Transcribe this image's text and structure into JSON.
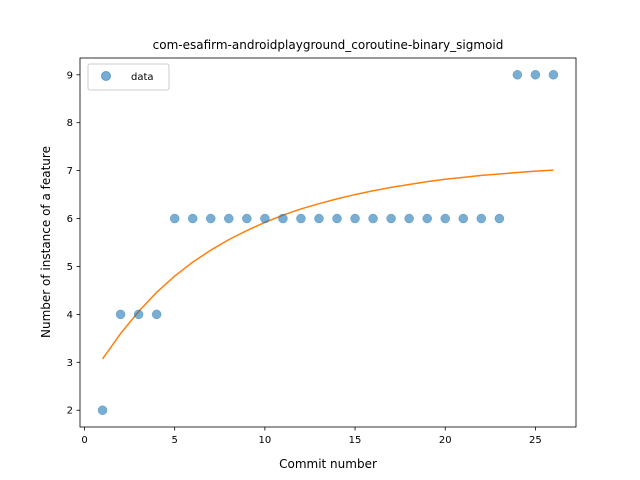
{
  "chart_data": {
    "type": "scatter",
    "title": "com-esafirm-androidplayground_coroutine-binary_sigmoid",
    "xlabel": "Commit number",
    "ylabel": "Number of instance of a feature",
    "xlim": [
      -0.25,
      27.25
    ],
    "ylim": [
      1.65,
      9.35
    ],
    "xticks": [
      0,
      5,
      10,
      15,
      20,
      25
    ],
    "yticks": [
      2,
      3,
      4,
      5,
      6,
      7,
      8,
      9
    ],
    "grid": false,
    "legend_position": "top-left",
    "series": [
      {
        "name": "data",
        "kind": "scatter",
        "color": "#1f77b4",
        "x": [
          1,
          2,
          3,
          4,
          5,
          6,
          7,
          8,
          9,
          10,
          11,
          12,
          13,
          14,
          15,
          16,
          17,
          18,
          19,
          20,
          21,
          22,
          23,
          24,
          25,
          26
        ],
        "y": [
          2,
          4,
          4,
          4,
          6,
          6,
          6,
          6,
          6,
          6,
          6,
          6,
          6,
          6,
          6,
          6,
          6,
          6,
          6,
          6,
          6,
          6,
          6,
          9,
          9,
          9
        ]
      },
      {
        "kind": "line",
        "color": "#ff7f0e",
        "x": [
          1,
          2,
          3,
          4,
          5,
          6,
          7,
          8,
          9,
          10,
          11,
          12,
          13,
          14,
          15,
          16,
          17,
          18,
          19,
          20,
          21,
          22,
          23,
          24,
          25,
          26
        ],
        "y": [
          3.07,
          3.6,
          4.06,
          4.46,
          4.8,
          5.09,
          5.34,
          5.56,
          5.75,
          5.92,
          6.07,
          6.2,
          6.31,
          6.41,
          6.5,
          6.58,
          6.65,
          6.71,
          6.77,
          6.82,
          6.86,
          6.9,
          6.93,
          6.96,
          6.99,
          7.01
        ]
      }
    ]
  }
}
